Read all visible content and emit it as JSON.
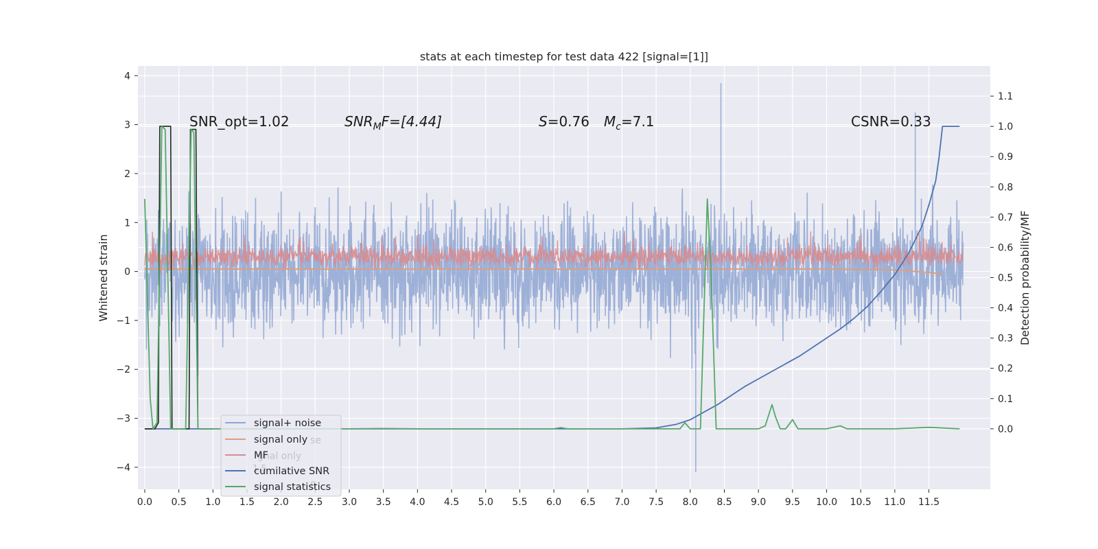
{
  "chart_data": {
    "type": "line",
    "title": "stats at each timestep for test data 422 [signal=[1]]",
    "ylabel": "Whitened strain",
    "y2label": "Detection probability/MF",
    "xlim": [
      -0.1,
      12.4
    ],
    "ylim": [
      -4.45,
      4.2
    ],
    "y2lim": [
      -0.2,
      1.2
    ],
    "x_ticks": [
      0.0,
      0.5,
      1.0,
      1.5,
      2.0,
      2.5,
      3.0,
      3.5,
      4.0,
      4.5,
      5.0,
      5.5,
      6.0,
      6.5,
      7.0,
      7.5,
      8.0,
      8.5,
      9.0,
      9.5,
      10.0,
      10.5,
      11.0,
      11.5
    ],
    "x_tick_labels": [
      "0.0",
      "0.5",
      "1.0",
      "1.5",
      "2.0",
      "2.5",
      "3.0",
      "3.5",
      "4.0",
      "4.5",
      "5.0",
      "5.5",
      "6.0",
      "6.5",
      "7.0",
      "7.5",
      "8.0",
      "8.5",
      "9.0",
      "9.5",
      "10.0",
      "10.5",
      "11.0",
      "11.5"
    ],
    "y_ticks": [
      -4,
      -3,
      -2,
      -1,
      0,
      1,
      2,
      3,
      4
    ],
    "y_tick_labels": [
      "−4",
      "−3",
      "−2",
      "−1",
      "0",
      "1",
      "2",
      "3",
      "4"
    ],
    "y2_ticks": [
      0.0,
      0.1,
      0.2,
      0.3,
      0.4,
      0.5,
      0.6,
      0.7,
      0.8,
      0.9,
      1.0,
      1.1
    ],
    "y2_tick_labels": [
      "0.0",
      "0.1",
      "0.2",
      "0.3",
      "0.4",
      "0.5",
      "0.6",
      "0.7",
      "0.8",
      "0.9",
      "1.0",
      "1.1"
    ],
    "grid": true,
    "legend_position": "bottom-left",
    "legend": [
      {
        "name": "signal+ noise",
        "color": "#8fa6d2"
      },
      {
        "name": "signal only",
        "color": "#dd9f80"
      },
      {
        "name": "MF",
        "color": "#d98b8d"
      },
      {
        "name": "cumilative SNR",
        "color": "#4c72b0"
      },
      {
        "name": "signal statistics",
        "color": "#55a868"
      }
    ],
    "legend_ghost_texts": [
      "se",
      "gnal only",
      "1.5",
      "S"
    ],
    "annotations": {
      "snr_opt": "SNR_opt=1.02",
      "snr_mf": "F=[4.44]",
      "snr_mf_main": "SNR",
      "snr_mf_sub": "M",
      "s_val": "=0.76",
      "s_sym": "S",
      "mc_sym": "M",
      "mc_sub": "c",
      "mc_val": "=7.1",
      "csnr": "CSNR=0.33"
    },
    "series": [
      {
        "name": "signal+ noise",
        "axis": "left",
        "x_range": [
          0.0,
          12.0
        ],
        "envelope_typical": [
          -1.6,
          1.75
        ],
        "extremes": [
          {
            "x": 8.45,
            "y": 3.85
          },
          {
            "x": 8.08,
            "y": -4.1
          },
          {
            "x": 11.3,
            "y": 3.25
          }
        ]
      },
      {
        "name": "MF",
        "axis": "left",
        "x_range": [
          0.0,
          12.0
        ],
        "envelope_typical": [
          0.05,
          0.55
        ]
      },
      {
        "name": "signal only",
        "axis": "left",
        "x": [
          0.0,
          1.0,
          2.0,
          3.0,
          4.0,
          5.0,
          6.0,
          7.0,
          8.0,
          9.0,
          10.0,
          10.5,
          11.0,
          11.3,
          11.5,
          11.7
        ],
        "y": [
          0.05,
          0.05,
          0.05,
          0.05,
          0.05,
          0.05,
          0.05,
          0.05,
          0.05,
          0.05,
          0.05,
          0.04,
          0.03,
          0.0,
          -0.02,
          -0.05
        ]
      },
      {
        "name": "cumilative SNR",
        "axis": "right",
        "x": [
          0.0,
          1.0,
          2.0,
          3.0,
          4.0,
          5.0,
          6.0,
          7.0,
          7.5,
          7.8,
          8.0,
          8.2,
          8.4,
          8.6,
          8.8,
          9.0,
          9.2,
          9.4,
          9.6,
          9.8,
          10.0,
          10.2,
          10.4,
          10.6,
          10.8,
          11.0,
          11.2,
          11.4,
          11.5,
          11.6,
          11.65,
          11.7,
          11.8,
          11.95
        ],
        "y": [
          0.0,
          0.0,
          0.0,
          0.0,
          0.0,
          0.0,
          0.0,
          0.0,
          0.003,
          0.015,
          0.03,
          0.055,
          0.08,
          0.11,
          0.14,
          0.165,
          0.19,
          0.215,
          0.24,
          0.27,
          0.3,
          0.33,
          0.365,
          0.405,
          0.455,
          0.51,
          0.58,
          0.67,
          0.74,
          0.82,
          0.9,
          1.0,
          1.0,
          1.0
        ]
      },
      {
        "name": "signal statistics",
        "axis": "right",
        "x": [
          0.0,
          0.08,
          0.12,
          0.18,
          0.25,
          0.3,
          0.38,
          0.42,
          0.5,
          0.6,
          0.68,
          0.72,
          0.78,
          0.8,
          0.85,
          1.0,
          2.0,
          3.0,
          3.5,
          4.0,
          5.0,
          6.0,
          6.1,
          6.2,
          7.0,
          7.85,
          7.92,
          8.0,
          8.15,
          8.25,
          8.3,
          8.38,
          9.0,
          9.1,
          9.2,
          9.25,
          9.32,
          9.4,
          9.5,
          9.58,
          10.0,
          10.2,
          10.3,
          10.4,
          11.0,
          11.5,
          11.95
        ],
        "y": [
          0.76,
          0.1,
          0.0,
          0.02,
          1.0,
          0.99,
          0.0,
          0.0,
          0.0,
          0.0,
          0.99,
          0.98,
          0.0,
          0.0,
          0.0,
          0.0,
          0.0,
          0.0,
          0.001,
          0.0,
          0.0,
          0.0,
          0.004,
          0.0,
          0.0,
          0.0,
          0.02,
          0.0,
          0.0,
          0.76,
          0.55,
          0.0,
          0.0,
          0.01,
          0.08,
          0.04,
          0.0,
          0.0,
          0.03,
          0.0,
          0.0,
          0.01,
          0.0,
          0.0,
          0.0,
          0.005,
          0.0
        ]
      },
      {
        "name": "black step trace",
        "axis": "right",
        "x": [
          0.0,
          0.15,
          0.2,
          0.22,
          0.38,
          0.4,
          0.42,
          0.62,
          0.65,
          0.67,
          0.75,
          0.78,
          0.8,
          1.0
        ],
        "y": [
          0.0,
          0.0,
          0.02,
          1.0,
          1.0,
          0.0,
          0.0,
          0.0,
          0.0,
          0.99,
          0.99,
          0.0,
          0.0,
          0.0
        ]
      }
    ]
  }
}
